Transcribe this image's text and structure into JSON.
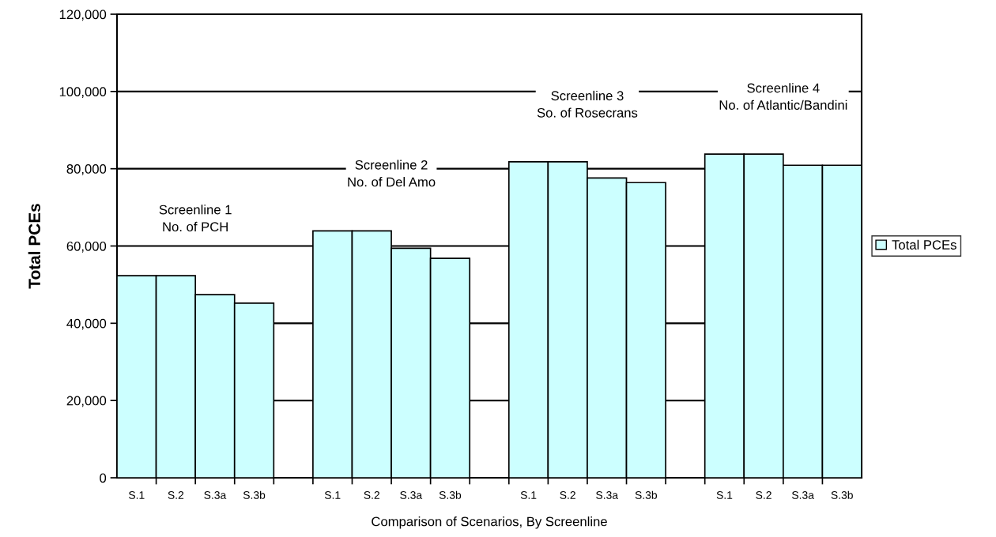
{
  "chart_data": {
    "type": "bar",
    "xlabel": "Comparison of Scenarios, By Screenline",
    "ylabel": "Total PCEs",
    "categories": [
      "S.1",
      "S.2",
      "S.3a",
      "S.3b",
      null,
      "S.1",
      "S.2",
      "S.3a",
      "S.3b",
      null,
      "S.1",
      "S.2",
      "S.3a",
      "S.3b",
      null,
      "S.1",
      "S.2",
      "S.3a",
      "S.3b"
    ],
    "series": [
      {
        "name": "Total PCEs",
        "color": "#ccffff",
        "values": [
          52300,
          52300,
          47400,
          45200,
          null,
          63900,
          63900,
          59400,
          56800,
          null,
          81800,
          81800,
          77600,
          76400,
          null,
          83800,
          83800,
          80900,
          80900
        ]
      }
    ],
    "ylim": [
      0,
      120000
    ],
    "yticks": [
      0,
      {
        "value": 20000,
        "label": "20,000"
      },
      {
        "value": 40000,
        "label": "40,000"
      },
      {
        "value": 60000,
        "label": "60,000"
      },
      {
        "value": 80000,
        "label": "80,000"
      },
      {
        "value": 100000,
        "label": "100,000"
      },
      {
        "value": 120000,
        "label": "120,000"
      }
    ],
    "grid": "y",
    "legend": "right",
    "annotations": [
      "Screenline 1\nNo. of PCH",
      "Screenline 2\nNo. of Del Amo",
      "Screenline 3\nSo. of Rosecrans",
      "Screenline 4\nNo. of Atlantic/Bandini"
    ]
  }
}
